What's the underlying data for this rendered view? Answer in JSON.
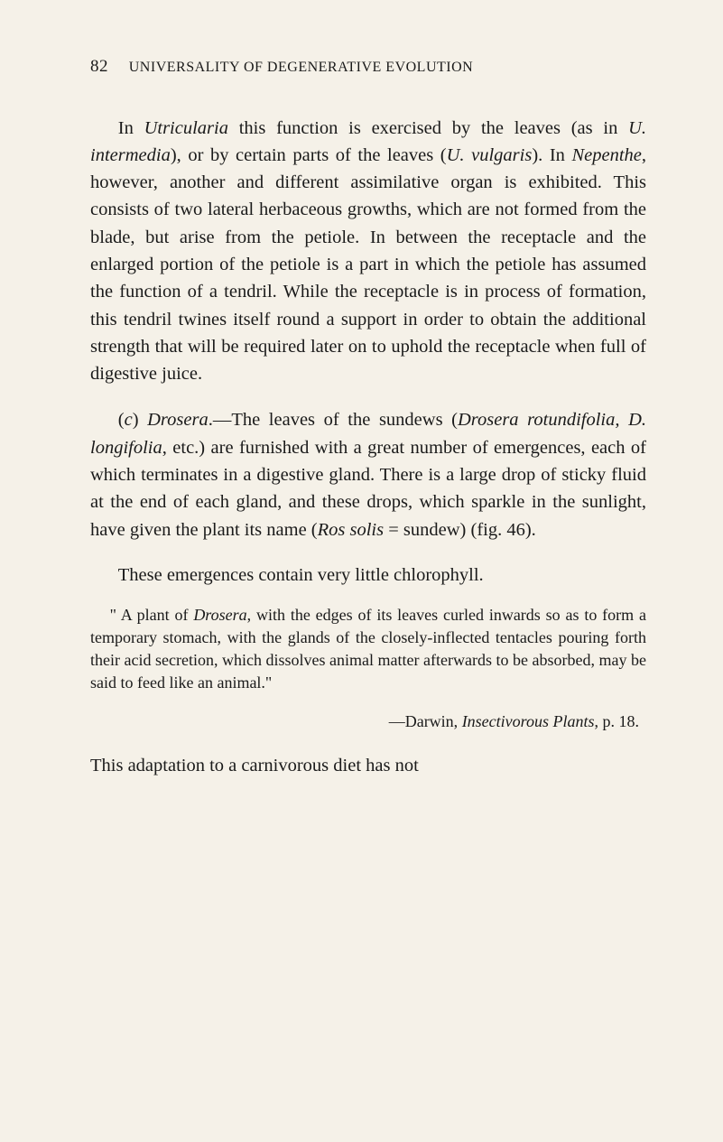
{
  "page": {
    "number": "82",
    "running_head": "UNIVERSALITY OF DEGENERATIVE EVOLUTION"
  },
  "paragraphs": {
    "p1": {
      "t1": "In ",
      "i1": "Utricularia",
      "t2": " this function is exercised by the leaves (as in ",
      "i2": "U. intermedia",
      "t3": "), or by certain parts of the leaves (",
      "i3": "U. vulgaris",
      "t4": "). In ",
      "i4": "Nepenthe",
      "t5": ", however, another and different assimilative organ is exhibited. This consists of two lateral herbaceous growths, which are not formed from the blade, but arise from the petiole. In between the receptacle and the enlarged portion of the petiole is a part in which the petiole has assumed the function of a tendril. While the receptacle is in process of formation, this tendril twines itself round a support in order to obtain the additional strength that will be required later on to uphold the receptacle when full of digestive juice."
    },
    "p2": {
      "t1": "(",
      "i1": "c",
      "t2": ") ",
      "i2": "Drosera",
      "t3": ".—The leaves of the sundews (",
      "i3": "Drosera rotundifolia, D. longifolia",
      "t4": ", etc.) are furnished with a great number of emergences, each of which terminates in a digestive gland. There is a large drop of sticky fluid at the end of each gland, and these drops, which sparkle in the sunlight, have given the plant its name (",
      "i4": "Ros solis",
      "t5": " = sundew) (fig. 46)."
    },
    "p3": {
      "t1": "These emergences contain very little chlorophyll."
    },
    "quote": {
      "t1": "\" A plant of ",
      "i1": "Drosera",
      "t2": ", with the edges of its leaves curled inwards so as to form a temporary stomach, with the glands of the closely-inflected tentacles pouring forth their acid secretion, which dissolves animal matter afterwards to be absorbed, may be said to feed like an animal.\""
    },
    "attribution": {
      "t1": "—Darwin, ",
      "i1": "Insectivorous Plants",
      "t2": ", p. 18."
    },
    "p4": {
      "t1": "This adaptation to a carnivorous diet has not"
    }
  },
  "colors": {
    "background": "#f5f1e8",
    "text": "#1a1a1a"
  },
  "typography": {
    "body_font_size": 20.5,
    "header_font_size": 17,
    "quote_font_size": 18,
    "line_height": 1.48
  }
}
